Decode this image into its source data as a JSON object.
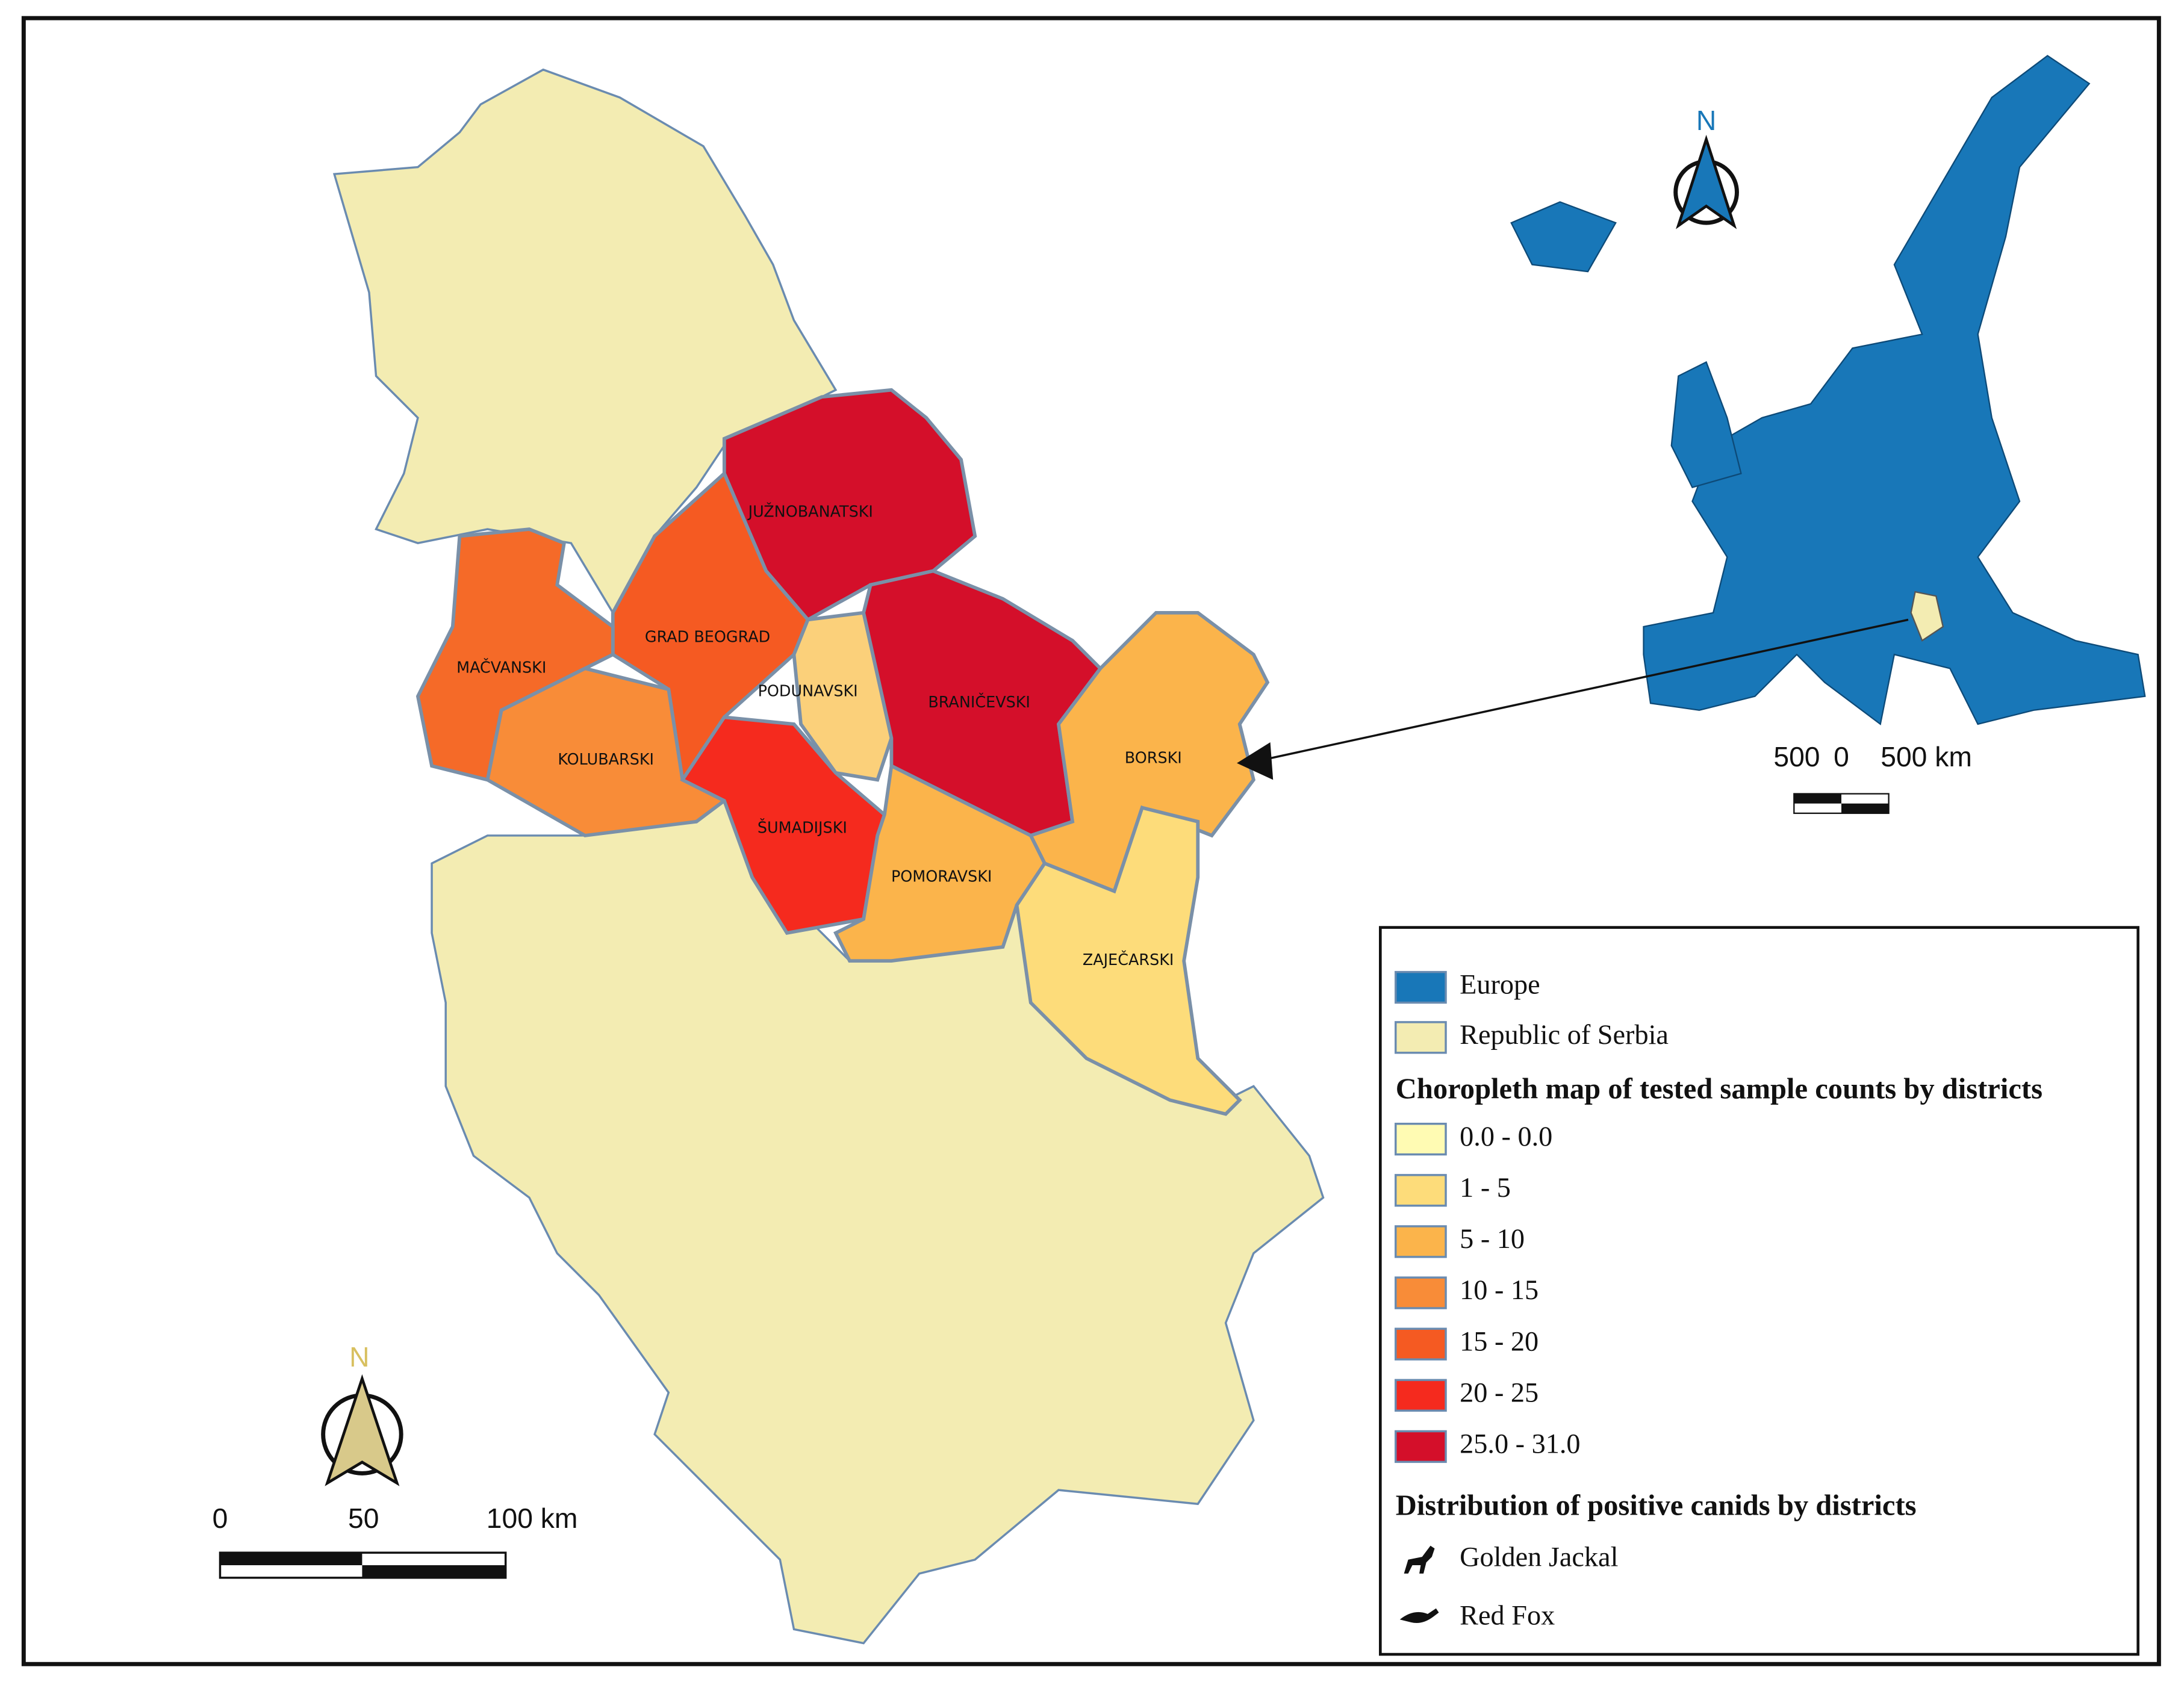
{
  "map": {
    "districts": [
      {
        "label": "JUŽNOBANATSKI",
        "color": "#d40f2a"
      },
      {
        "label": "GRAD BEOGRAD",
        "color": "#f55a22"
      },
      {
        "label": "MAČVANSKI",
        "color": "#f56a28"
      },
      {
        "label": "KOLUBARSKI",
        "color": "#f88c38"
      },
      {
        "label": "PODUNAVSKI",
        "color": "#fbd07a"
      },
      {
        "label": "BRANIČEVSKI",
        "color": "#d40f2a"
      },
      {
        "label": "BORSKI",
        "color": "#fbb44b"
      },
      {
        "label": "ŠUMADIJSKI",
        "color": "#f52a1e"
      },
      {
        "label": "POMORAVSKI",
        "color": "#fbb44b"
      },
      {
        "label": "ZAJEČARSKI",
        "color": "#fddc7a"
      }
    ],
    "north_label": "N",
    "scale_labels": [
      "0",
      "50",
      "100 km"
    ],
    "inset": {
      "north_label": "N",
      "scale_labels": [
        "500",
        "0",
        "500 km"
      ]
    }
  },
  "legend": {
    "base_layers": [
      {
        "label": "Europe",
        "color": "#1877b8"
      },
      {
        "label": "Republic of Serbia",
        "color": "#f3ecb2"
      }
    ],
    "choropleth_title": "Choropleth map of tested sample counts by districts",
    "classes": [
      {
        "label": "0.0 - 0.0",
        "color": "#fffbb3"
      },
      {
        "label": "1 - 5",
        "color": "#fddc7a"
      },
      {
        "label": "5 - 10",
        "color": "#fbb44b"
      },
      {
        "label": "10 - 15",
        "color": "#f88c38"
      },
      {
        "label": "15 - 20",
        "color": "#f55a22"
      },
      {
        "label": "20 - 25",
        "color": "#f52a1e"
      },
      {
        "label": "25.0 - 31.0",
        "color": "#d40f2a"
      }
    ],
    "distribution_title": "Distribution of positive canids by districts",
    "species": [
      "Golden Jackal",
      "Red Fox"
    ]
  }
}
